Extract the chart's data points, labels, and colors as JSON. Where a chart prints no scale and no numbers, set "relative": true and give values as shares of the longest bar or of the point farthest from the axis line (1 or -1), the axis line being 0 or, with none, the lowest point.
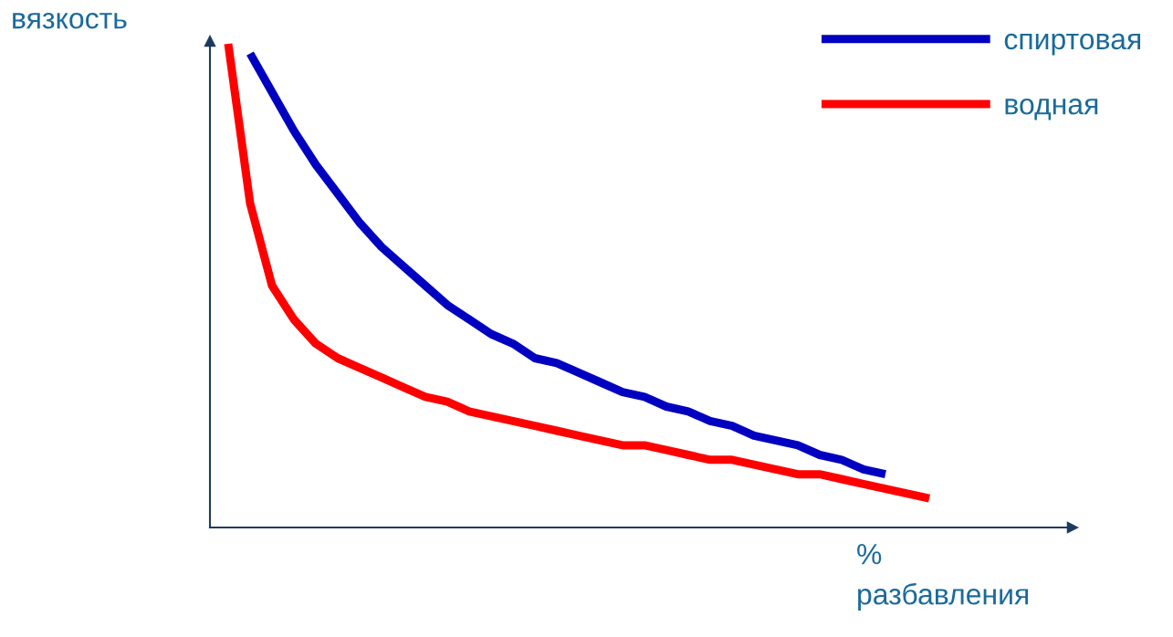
{
  "chart_data": {
    "type": "line",
    "relative": true,
    "xlabel": "% разбавления",
    "ylabel": "вязкость",
    "legend": "top right",
    "marker": "none",
    "line_style": "solid",
    "categories": [
      null,
      null,
      null,
      null,
      null,
      null,
      null,
      null,
      null,
      null,
      null,
      null,
      null,
      null,
      null,
      null,
      null,
      null,
      null,
      null,
      null,
      null,
      null,
      null,
      null,
      null,
      null,
      null,
      null,
      null,
      null,
      null,
      null
    ],
    "series": [
      {
        "name": "спиртовая",
        "color": "#0000c0",
        "values": [
          null,
          0.98,
          0.9,
          0.82,
          0.75,
          0.69,
          0.63,
          0.58,
          0.54,
          0.5,
          0.46,
          0.43,
          0.4,
          0.38,
          0.35,
          0.34,
          0.32,
          0.3,
          0.28,
          0.27,
          0.25,
          0.24,
          0.22,
          0.21,
          0.19,
          0.18,
          0.17,
          0.15,
          0.14,
          0.12,
          0.11,
          null,
          null
        ]
      },
      {
        "name": "водная",
        "color": "#ff0000",
        "values": [
          1.0,
          0.67,
          0.5,
          0.43,
          0.38,
          0.35,
          0.33,
          0.31,
          0.29,
          0.27,
          0.26,
          0.24,
          0.23,
          0.22,
          0.21,
          0.2,
          0.19,
          0.18,
          0.17,
          0.17,
          0.16,
          0.15,
          0.14,
          0.14,
          0.13,
          0.12,
          0.11,
          0.11,
          0.1,
          0.09,
          0.08,
          0.07,
          0.06
        ]
      }
    ]
  }
}
